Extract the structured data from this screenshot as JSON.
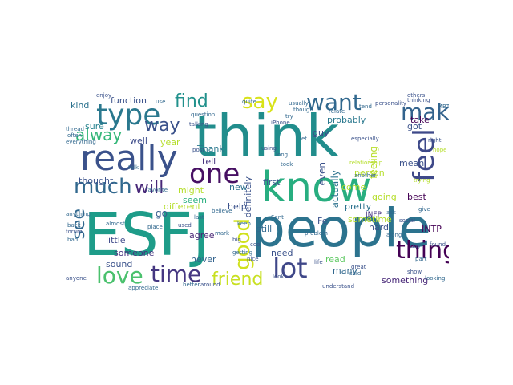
{
  "palette": {
    "background": "#ffffff",
    "colormap": "viridis"
  },
  "words": [
    {
      "text": "think",
      "color": "#218d8c"
    },
    {
      "text": "people",
      "color": "#2c738e"
    },
    {
      "text": "ESFJ",
      "color": "#1e9c89"
    },
    {
      "text": "know",
      "color": "#28ae80"
    },
    {
      "text": "really",
      "color": "#3b528b"
    },
    {
      "text": "type",
      "color": "#2a788e"
    },
    {
      "text": "one",
      "color": "#471063"
    },
    {
      "text": "make",
      "color": "#33638d"
    },
    {
      "text": "feel",
      "color": "#3e4989"
    },
    {
      "text": "love",
      "color": "#4ac16d"
    },
    {
      "text": "time",
      "color": "#453781"
    },
    {
      "text": "lot",
      "color": "#3f4788"
    },
    {
      "text": "thing",
      "color": "#440154"
    },
    {
      "text": "much",
      "color": "#31688e"
    },
    {
      "text": "want",
      "color": "#31688e"
    },
    {
      "text": "say",
      "color": "#d8e219"
    },
    {
      "text": "find",
      "color": "#21918c"
    },
    {
      "text": "friend",
      "color": "#c8e020"
    },
    {
      "text": "good",
      "color": "#d0e11c"
    },
    {
      "text": "alway",
      "color": "#35b779"
    },
    {
      "text": "way",
      "color": "#3b528b"
    },
    {
      "text": "will",
      "color": "#482878"
    },
    {
      "text": "see",
      "color": "#31688e"
    },
    {
      "text": "go",
      "color": "#365c8d"
    },
    {
      "text": "function",
      "color": "#3b528b"
    },
    {
      "text": "kind",
      "color": "#2c728e"
    },
    {
      "text": "sure",
      "color": "#26828e"
    },
    {
      "text": "well",
      "color": "#3e4c8a"
    },
    {
      "text": "year",
      "color": "#b5de2b"
    },
    {
      "text": "Thank",
      "color": "#2a788e"
    },
    {
      "text": "tell",
      "color": "#46327e"
    },
    {
      "text": "might",
      "color": "#b5de2b"
    },
    {
      "text": "seem",
      "color": "#29af7f"
    },
    {
      "text": "different",
      "color": "#b5de2b"
    },
    {
      "text": "thought",
      "color": "#3b528b"
    },
    {
      "text": "little",
      "color": "#3e4989"
    },
    {
      "text": "someone",
      "color": "#46337f"
    },
    {
      "text": "sound",
      "color": "#3b528b"
    },
    {
      "text": "agree",
      "color": "#482475"
    },
    {
      "text": "never",
      "color": "#33638d"
    },
    {
      "text": "new",
      "color": "#2d708e"
    },
    {
      "text": "help",
      "color": "#3b528b"
    },
    {
      "text": "probably",
      "color": "#2a788e"
    },
    {
      "text": "guy",
      "color": "#3e4a89"
    },
    {
      "text": "first",
      "color": "#38588c"
    },
    {
      "text": "still",
      "color": "#31688e"
    },
    {
      "text": "even",
      "color": "#3b528b"
    },
    {
      "text": "actually",
      "color": "#2c728e"
    },
    {
      "text": "feeling",
      "color": "#b8de29"
    },
    {
      "text": "got",
      "color": "#3b528b"
    },
    {
      "text": "take",
      "color": "#440154"
    },
    {
      "text": "mean",
      "color": "#3b528b"
    },
    {
      "text": "best",
      "color": "#440154"
    },
    {
      "text": "person",
      "color": "#b5de2b"
    },
    {
      "text": "come",
      "color": "#b5de2b"
    },
    {
      "text": "going",
      "color": "#b5de2b"
    },
    {
      "text": "pretty",
      "color": "#2c728e"
    },
    {
      "text": "hard",
      "color": "#3b528b"
    },
    {
      "text": "INFP",
      "color": "#46337f"
    },
    {
      "text": "INTP",
      "color": "#440154"
    },
    {
      "text": "sometime",
      "color": "#b5de2b"
    },
    {
      "text": "Fe",
      "color": "#3b528b"
    },
    {
      "text": "read",
      "color": "#5ec962"
    },
    {
      "text": "need",
      "color": "#3b528b"
    },
    {
      "text": "many",
      "color": "#31688e"
    },
    {
      "text": "something",
      "color": "#482878"
    },
    {
      "text": "definitely",
      "color": "#3b528b"
    },
    {
      "text": "relationship",
      "color": "#b5de2b"
    },
    {
      "text": "iPhone",
      "color": "#3b528b"
    },
    {
      "text": "talking",
      "color": "#3b528b"
    },
    {
      "text": "question",
      "color": "#31688e"
    },
    {
      "text": "though",
      "color": "#31688e"
    },
    {
      "text": "post",
      "color": "#3b528b"
    },
    {
      "text": "usually",
      "color": "#31688e"
    },
    {
      "text": "relate",
      "color": "#31688e"
    },
    {
      "text": "personality",
      "color": "#3b528b"
    },
    {
      "text": "thinking",
      "color": "#3b528b"
    },
    {
      "text": "use",
      "color": "#31688e"
    },
    {
      "text": "everything",
      "color": "#31688e"
    },
    {
      "text": "thread",
      "color": "#31688e"
    },
    {
      "text": "often",
      "color": "#31688e"
    },
    {
      "text": "anything",
      "color": "#31688e"
    },
    {
      "text": "back",
      "color": "#31688e"
    },
    {
      "text": "anyone",
      "color": "#3b528b"
    },
    {
      "text": "let",
      "color": "#31688e"
    },
    {
      "text": "using",
      "color": "#3b528b"
    },
    {
      "text": "long",
      "color": "#31688e"
    },
    {
      "text": "took",
      "color": "#31688e"
    },
    {
      "text": "nice",
      "color": "#3b528b"
    },
    {
      "text": "Sent",
      "color": "#31688e"
    },
    {
      "text": "life",
      "color": "#3b528b"
    },
    {
      "text": "problem",
      "color": "#31688e"
    },
    {
      "text": "last",
      "color": "#31688e"
    },
    {
      "text": "big",
      "color": "#3b528b"
    },
    {
      "text": "getting",
      "color": "#31688e"
    },
    {
      "text": "around",
      "color": "#3b528b"
    },
    {
      "text": "better",
      "color": "#31688e"
    },
    {
      "text": "appreciate",
      "color": "#31688e"
    },
    {
      "text": "understand",
      "color": "#3b528b"
    },
    {
      "text": "said",
      "color": "#31688e"
    },
    {
      "text": "great",
      "color": "#3b528b"
    },
    {
      "text": "social",
      "color": "#3b528b"
    },
    {
      "text": "along",
      "color": "#31688e"
    },
    {
      "text": "day",
      "color": "#3b528b"
    },
    {
      "text": "part",
      "color": "#31688e"
    },
    {
      "text": "found",
      "color": "#3b528b"
    },
    {
      "text": "give",
      "color": "#31688e"
    },
    {
      "text": "show",
      "color": "#3b528b"
    },
    {
      "text": "looking",
      "color": "#31688e"
    },
    {
      "text": "ask",
      "color": "#31688e"
    },
    {
      "text": "trying",
      "color": "#b5de2b"
    },
    {
      "text": "right",
      "color": "#3b528b"
    },
    {
      "text": "hope",
      "color": "#b5de2b"
    },
    {
      "text": "MBTI",
      "color": "#31688e"
    },
    {
      "text": "tend",
      "color": "#31688e"
    },
    {
      "text": "others",
      "color": "#3b528b"
    },
    {
      "text": "another",
      "color": "#31688e"
    },
    {
      "text": "especially",
      "color": "#3b528b"
    },
    {
      "text": "mark",
      "color": "#31688e"
    },
    {
      "text": "used",
      "color": "#3b528b"
    },
    {
      "text": "favorite",
      "color": "#31688e"
    },
    {
      "text": "talk",
      "color": "#31688e"
    },
    {
      "text": "almost",
      "color": "#31688e"
    },
    {
      "text": "place",
      "color": "#31688e"
    },
    {
      "text": "forum",
      "color": "#3b528b"
    },
    {
      "text": "bad",
      "color": "#31688e"
    },
    {
      "text": "look",
      "color": "#3b528b"
    },
    {
      "text": "try",
      "color": "#31688e"
    },
    {
      "text": "quite",
      "color": "#31688e"
    },
    {
      "text": "enjoy",
      "color": "#3b528b"
    },
    {
      "text": "believe",
      "color": "#31688e"
    },
    {
      "text": "cool",
      "color": "#3b528b"
    },
    {
      "text": "keep",
      "color": "#31688e"
    }
  ]
}
